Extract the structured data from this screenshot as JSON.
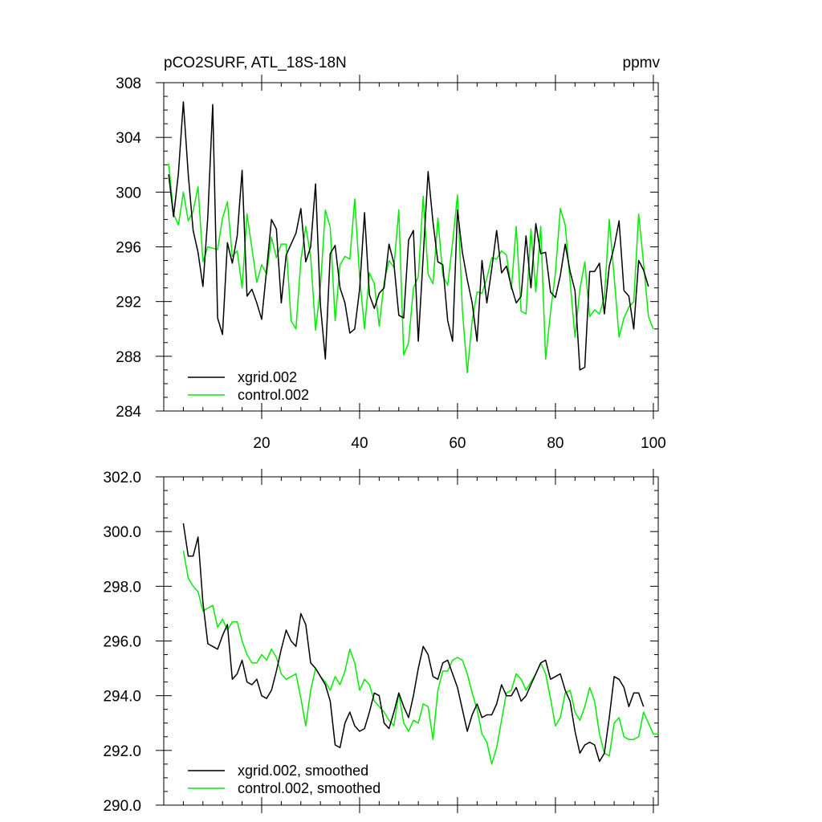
{
  "header": {
    "title_left": "pCO2SURF, ATL_18S-18N",
    "title_right": "ppmv"
  },
  "colors": {
    "series1": "#000000",
    "series2": "#00ee00"
  },
  "chart_data": [
    {
      "type": "line",
      "title": "pCO2SURF, ATL_18S-18N",
      "unit_label": "ppmv",
      "xlim": [
        0,
        101
      ],
      "ylim": [
        284,
        308
      ],
      "x_ticks": [
        20,
        40,
        60,
        80,
        100
      ],
      "y_ticks": [
        284,
        288,
        292,
        296,
        300,
        304,
        308
      ],
      "y_tick_labels": [
        "284",
        "288",
        "292",
        "296",
        "300",
        "304",
        "308"
      ],
      "legend_position": "lower-left",
      "series": [
        {
          "name": "xgrid.002",
          "color": "#000000",
          "x_start": 1,
          "values": [
            301.3,
            298.2,
            301.4,
            306.6,
            301.3,
            297.2,
            295.6,
            293.1,
            298.2,
            306.4,
            290.8,
            289.6,
            296.3,
            294.8,
            296.8,
            301.6,
            292.4,
            292.9,
            291.9,
            290.7,
            294.3,
            298.0,
            297.3,
            291.9,
            295.4,
            296.2,
            297.0,
            298.8,
            294.9,
            296.0,
            300.6,
            291.7,
            287.8,
            295.5,
            296.1,
            293.0,
            291.9,
            289.7,
            290.0,
            292.9,
            298.5,
            292.5,
            291.5,
            292.6,
            293.0,
            296.2,
            294.8,
            291.0,
            290.8,
            296.5,
            297.2,
            289.1,
            295.3,
            301.5,
            297.8,
            294.9,
            294.7,
            290.6,
            289.1,
            298.7,
            295.6,
            293.6,
            291.9,
            289.1,
            295.0,
            291.9,
            294.4,
            297.2,
            294.1,
            294.6,
            293.1,
            291.9,
            292.4,
            296.8,
            293.0,
            297.7,
            295.5,
            295.6,
            292.7,
            292.3,
            293.9,
            296.2,
            294.2,
            292.8,
            287.0,
            287.2,
            294.2,
            294.2,
            294.8,
            291.1,
            294.6,
            296.0,
            297.9,
            292.8,
            292.4,
            290.0,
            295.0,
            294.3,
            293.1
          ]
        },
        {
          "name": "control.002",
          "color": "#00ee00",
          "x_start": 1,
          "values": [
            302.1,
            298.4,
            297.6,
            300.0,
            297.9,
            298.6,
            300.4,
            294.9,
            296.0,
            295.9,
            295.8,
            298.1,
            299.3,
            295.3,
            295.7,
            293.0,
            298.4,
            295.9,
            293.4,
            294.7,
            294.0,
            296.7,
            295.2,
            296.2,
            296.2,
            290.6,
            290.0,
            295.0,
            297.5,
            295.3,
            289.9,
            293.1,
            298.7,
            297.4,
            290.6,
            294.7,
            295.3,
            295.1,
            299.5,
            293.8,
            290.0,
            294.1,
            293.3,
            290.2,
            293.4,
            295.0,
            294.5,
            298.7,
            288.1,
            289.0,
            293.0,
            293.8,
            299.7,
            294.0,
            293.3,
            298.1,
            293.9,
            293.2,
            296.3,
            299.8,
            291.4,
            286.8,
            290.6,
            292.7,
            292.6,
            293.7,
            295.2,
            295.1,
            295.7,
            295.4,
            292.9,
            297.5,
            291.3,
            291.1,
            297.3,
            292.7,
            297.5,
            287.8,
            291.2,
            294.1,
            298.8,
            297.6,
            293.5,
            289.4,
            292.9,
            294.9,
            290.9,
            291.4,
            291.1,
            292.3,
            298.0,
            293.8,
            289.4,
            290.8,
            291.6,
            292.0,
            298.4,
            294.8,
            290.9,
            290.0
          ]
        }
      ]
    },
    {
      "type": "line",
      "xlim": [
        0,
        101
      ],
      "ylim": [
        290.0,
        302.0
      ],
      "x_ticks": [
        20,
        40,
        60,
        80,
        100
      ],
      "y_ticks": [
        290.0,
        292.0,
        294.0,
        296.0,
        298.0,
        300.0,
        302.0
      ],
      "y_tick_labels": [
        "290.0",
        "292.0",
        "294.0",
        "296.0",
        "298.0",
        "300.0",
        "302.0"
      ],
      "legend_position": "lower-left",
      "series": [
        {
          "name": "xgrid.002, smoothed",
          "color": "#000000",
          "x_start": 4,
          "values": [
            300.3,
            299.1,
            299.1,
            299.8,
            297.4,
            295.9,
            295.8,
            295.7,
            296.2,
            296.6,
            294.6,
            294.8,
            295.3,
            294.5,
            294.4,
            294.6,
            294.0,
            293.9,
            294.2,
            294.9,
            295.7,
            296.4,
            296.0,
            295.8,
            297.0,
            296.6,
            295.2,
            295.0,
            294.7,
            294.4,
            293.8,
            292.2,
            292.1,
            293.0,
            293.4,
            292.9,
            292.7,
            292.8,
            293.4,
            294.1,
            294.0,
            293.0,
            292.8,
            293.4,
            294.1,
            293.6,
            293.2,
            294.0,
            295.0,
            295.8,
            295.5,
            294.7,
            294.6,
            295.2,
            295.3,
            294.8,
            294.3,
            293.5,
            292.7,
            293.3,
            293.7,
            293.2,
            293.3,
            293.3,
            293.7,
            294.4,
            294.0,
            294.0,
            294.3,
            293.8,
            294.0,
            294.4,
            294.8,
            295.2,
            295.3,
            294.6,
            294.7,
            294.8,
            294.2,
            293.8,
            292.7,
            291.9,
            292.2,
            292.3,
            292.2,
            291.6,
            291.9,
            293.2,
            294.7,
            294.6,
            294.3,
            293.6,
            294.1,
            294.1,
            293.6
          ]
        },
        {
          "name": "control.002, smoothed",
          "color": "#00ee00",
          "x_start": 4,
          "values": [
            299.3,
            298.3,
            298.0,
            297.8,
            297.1,
            297.2,
            297.3,
            296.5,
            296.8,
            296.4,
            296.7,
            296.7,
            296.0,
            295.5,
            295.2,
            295.2,
            295.5,
            295.3,
            295.7,
            295.4,
            294.8,
            294.6,
            294.7,
            294.8,
            293.9,
            292.9,
            294.2,
            295.0,
            294.7,
            294.5,
            294.2,
            294.7,
            294.4,
            294.9,
            295.7,
            295.2,
            294.2,
            294.6,
            294.4,
            293.8,
            293.6,
            293.4,
            293.1,
            292.9,
            294.1,
            293.0,
            292.7,
            293.1,
            293.0,
            293.7,
            293.6,
            292.4,
            294.2,
            294.9,
            294.9,
            295.3,
            295.4,
            295.3,
            294.8,
            294.1,
            293.5,
            292.6,
            292.3,
            291.5,
            292.1,
            293.1,
            294.1,
            294.2,
            294.8,
            294.6,
            294.2,
            294.5,
            294.8,
            295.2,
            294.8,
            293.9,
            292.9,
            293.2,
            294.1,
            294.2,
            293.4,
            293.1,
            293.6,
            294.3,
            293.8,
            292.6,
            291.9,
            291.8,
            293.0,
            293.2,
            292.5,
            292.4,
            292.4,
            292.5,
            293.4,
            293.0,
            292.6,
            292.6
          ]
        }
      ]
    }
  ]
}
